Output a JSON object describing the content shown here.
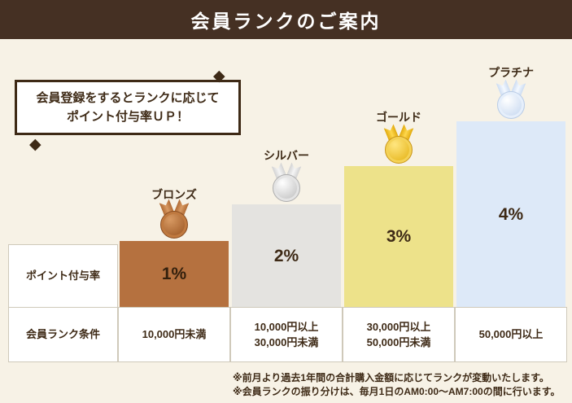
{
  "header": {
    "title": "会員ランクのご案内"
  },
  "callout": {
    "line1": "会員登録をするとランクに応じて",
    "line2": "ポイント付与率ＵＰ！",
    "diamond_glyph": "◆"
  },
  "table": {
    "rate_row_label": "ポイント付与率",
    "condition_row_label": "会員ランク条件"
  },
  "ranks": [
    {
      "name": "ブロンズ",
      "rate": "1%",
      "rate_value": 1,
      "condition_line1": "10,000円未満",
      "condition_line2": "",
      "bar_color": "#b5713f",
      "medal_color": "#b06a33"
    },
    {
      "name": "シルバー",
      "rate": "2%",
      "rate_value": 2,
      "condition_line1": "10,000円以上",
      "condition_line2": "30,000円未満",
      "bar_color": "#e4e3e0",
      "medal_color": "#d7d7d7"
    },
    {
      "name": "ゴールド",
      "rate": "3%",
      "rate_value": 3,
      "condition_line1": "30,000円以上",
      "condition_line2": "50,000円未満",
      "bar_color": "#ede28a",
      "medal_color": "#f0c41f"
    },
    {
      "name": "プラチナ",
      "rate": "4%",
      "rate_value": 4,
      "condition_line1": "50,000円以上",
      "condition_line2": "",
      "bar_color": "#dde9f8",
      "medal_color": "#dfeafc"
    }
  ],
  "footnotes": {
    "line1": "※前月より過去1年間の合計購入金額に応じてランクが変動いたします。",
    "line2": "※会員ランクの振り分けは、毎月1日のAM0:00〜AM7:00の間に行います。"
  },
  "colors": {
    "background": "#f7f2e6",
    "header_bar": "#453023",
    "text": "#3e2a16"
  }
}
